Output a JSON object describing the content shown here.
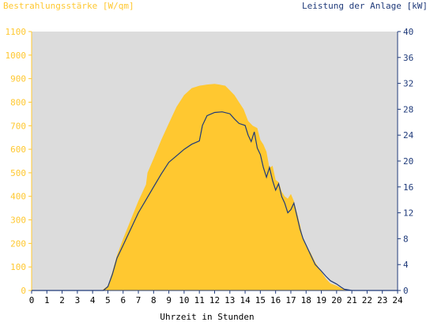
{
  "chart_data": {
    "type": "area",
    "title_left": "Bestrahlungsstärke [W/qm]",
    "title_right": "Leistung der Anlage [kW]",
    "xlabel": "Uhrzeit in Stunden",
    "xlim": [
      0,
      24
    ],
    "ylim_left": [
      0,
      1100
    ],
    "ylim_right": [
      0,
      40
    ],
    "xticks": [
      "0",
      "1",
      "2",
      "3",
      "4",
      "5",
      "6",
      "7",
      "8",
      "9",
      "10",
      "11",
      "12",
      "13",
      "14",
      "15",
      "16",
      "17",
      "18",
      "19",
      "20",
      "21",
      "22",
      "23",
      "24"
    ],
    "yticks_left": [
      "0",
      "100",
      "200",
      "300",
      "400",
      "500",
      "600",
      "700",
      "800",
      "900",
      "1000",
      "1100"
    ],
    "yticks_right": [
      "0",
      "4",
      "8",
      "12",
      "16",
      "20",
      "24",
      "28",
      "32",
      "36",
      "40"
    ],
    "background_color": "#DCDCDC",
    "grid": false,
    "series": [
      {
        "name": "Bestrahlungsstärke [W/qm]",
        "axis": "left",
        "kind": "area",
        "color": "#FFC830",
        "x": [
          0,
          4.6,
          5.0,
          5.3,
          5.6,
          6.0,
          6.5,
          7.0,
          7.5,
          7.6,
          8.0,
          8.5,
          9.0,
          9.5,
          10.0,
          10.5,
          11.0,
          11.5,
          12.0,
          12.3,
          12.7,
          13.0,
          13.3,
          13.6,
          13.9,
          14.2,
          14.5,
          14.8,
          15.0,
          15.2,
          15.4,
          15.6,
          15.8,
          16.0,
          16.2,
          16.4,
          16.6,
          16.8,
          17.0,
          17.2,
          17.4,
          17.6,
          17.8,
          18.0,
          18.3,
          18.6,
          19.0,
          19.3,
          19.6,
          20.0,
          20.3,
          20.6,
          21.0,
          24
        ],
        "values": [
          0,
          0,
          20,
          80,
          150,
          220,
          300,
          380,
          450,
          500,
          560,
          640,
          710,
          780,
          830,
          860,
          870,
          875,
          878,
          875,
          870,
          850,
          830,
          800,
          770,
          720,
          700,
          690,
          640,
          620,
          590,
          520,
          530,
          470,
          460,
          420,
          400,
          390,
          410,
          380,
          330,
          280,
          220,
          190,
          160,
          120,
          80,
          50,
          30,
          20,
          10,
          5,
          0,
          0
        ]
      },
      {
        "name": "Leistung der Anlage [kW]",
        "axis": "right",
        "kind": "line",
        "color": "#1F3A7A",
        "x": [
          0,
          4.7,
          5.0,
          5.3,
          5.6,
          6.0,
          6.5,
          7.0,
          7.5,
          8.0,
          8.5,
          9.0,
          9.5,
          10.0,
          10.5,
          11.0,
          11.2,
          11.5,
          12.0,
          12.5,
          13.0,
          13.3,
          13.6,
          14.0,
          14.2,
          14.4,
          14.6,
          14.8,
          15.0,
          15.2,
          15.4,
          15.6,
          15.8,
          16.0,
          16.2,
          16.4,
          16.6,
          16.8,
          17.0,
          17.2,
          17.4,
          17.6,
          17.8,
          18.0,
          18.3,
          18.6,
          19.0,
          19.3,
          19.6,
          20.0,
          20.3,
          20.5,
          21.0,
          24
        ],
        "values": [
          0,
          0,
          0.6,
          2.5,
          5.0,
          7.0,
          9.5,
          12.0,
          14.0,
          16.0,
          18.0,
          19.8,
          20.8,
          21.8,
          22.6,
          23.1,
          25.5,
          27.0,
          27.5,
          27.6,
          27.3,
          26.5,
          25.8,
          25.5,
          24.0,
          23.0,
          24.5,
          22.0,
          21.0,
          19.0,
          17.5,
          19.0,
          17.0,
          15.5,
          16.5,
          14.5,
          13.5,
          12.0,
          12.5,
          13.5,
          11.5,
          9.5,
          8.0,
          7.0,
          5.5,
          4.0,
          3.0,
          2.2,
          1.5,
          1.0,
          0.5,
          0.2,
          0,
          0
        ]
      }
    ]
  }
}
